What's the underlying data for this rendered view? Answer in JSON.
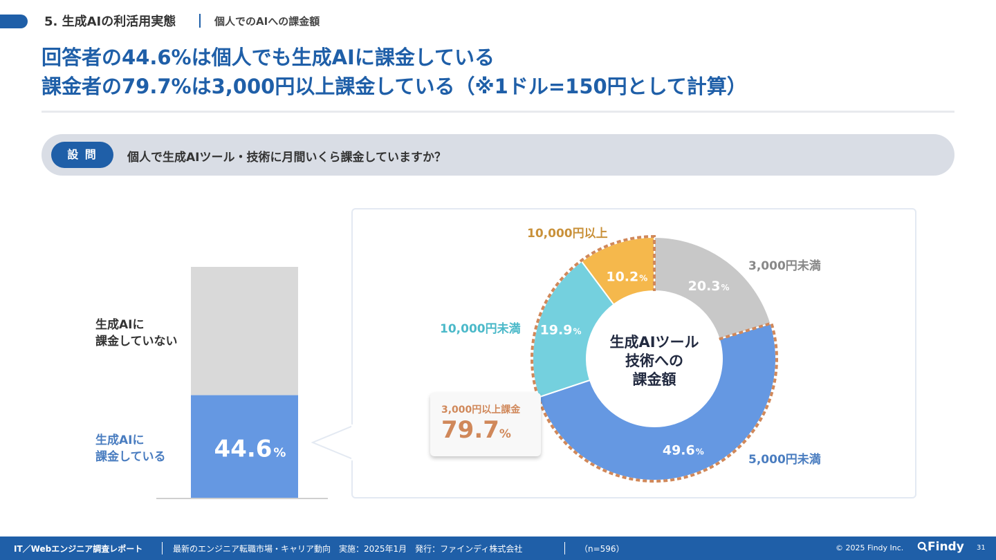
{
  "header": {
    "section_title": "5. 生成AIの利活用実態",
    "sub_title": "個人でのAIへの課金額"
  },
  "headline": {
    "line1": "回答者の44.6%は個人でも生成AIに課金している",
    "line2": "課金者の79.7%は3,000円以上課金している（※1ドル=150円として計算）"
  },
  "question": {
    "badge": "設 問",
    "text": "個人で生成AIツール・技術に月間いくら課金していますか？"
  },
  "chart_data": [
    {
      "type": "bar",
      "stacked": true,
      "categories": [
        "生成AIに課金している",
        "生成AIに課金していない"
      ],
      "values": [
        44.6,
        55.4
      ],
      "labels": {
        "no_line1": "生成AIに",
        "no_line2": "課金していない",
        "yes_line1": "生成AIに",
        "yes_line2": "課金している"
      },
      "value_label": "44.6",
      "unit": "%",
      "colors": {
        "yes": "#6598e2",
        "no": "#d9d9d9"
      }
    },
    {
      "type": "pie",
      "donut": true,
      "center_title": [
        "生成AIツール",
        "技術への",
        "課金額"
      ],
      "slices": [
        {
          "label": "3,000円未満",
          "value": 20.3,
          "value_text": "20.3",
          "color": "#c8c8c8",
          "label_color": "#888888"
        },
        {
          "label": "5,000円未満",
          "value": 49.6,
          "value_text": "49.6",
          "color": "#6598e2",
          "label_color": "#4a7dc0"
        },
        {
          "label": "10,000円未満",
          "value": 19.9,
          "value_text": "19.9",
          "color": "#74d0de",
          "label_color": "#4bb9c9"
        },
        {
          "label": "10,000円以上",
          "value": 10.2,
          "value_text": "10.2",
          "color": "#f5b84c",
          "label_color": "#c9913a"
        }
      ],
      "unit": "%",
      "highlight": {
        "label": "3,000円以上課金",
        "value": "79.7",
        "unit": "%",
        "color": "#d0885a"
      }
    }
  ],
  "footer": {
    "report": "IT／Webエンジニア調査レポート",
    "desc": "最新のエンジニア転職市場・キャリア動向　実施：2025年1月　発行：ファインディ株式会社",
    "n": "（n=596）",
    "copyright": "© 2025 Findy Inc.",
    "logo": "Findy",
    "page": "31"
  },
  "colors": {
    "brand": "#1f5fa8"
  }
}
